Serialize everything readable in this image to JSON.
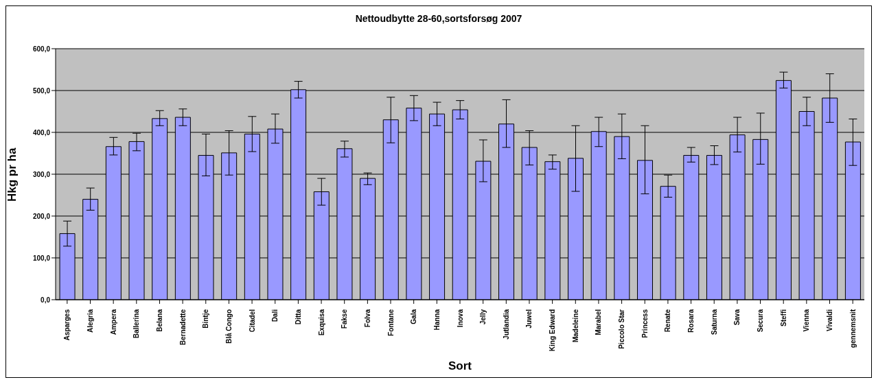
{
  "chart_data": {
    "type": "bar",
    "title": "Nettoudbytte 28-60,sortsforsøg 2007",
    "xlabel": "Sort",
    "ylabel": "Hkg pr ha",
    "categories": [
      "Asparges",
      "Alegria",
      "Ampera",
      "Ballerina",
      "Belana",
      "Bernadette",
      "Bintje",
      "Blå Congo",
      "Citadel",
      "Dali",
      "Ditta",
      "Exquisa",
      "Fakse",
      "Folva",
      "Fontane",
      "Gala",
      "Hanna",
      "Inova",
      "Jelly",
      "Jutlandia",
      "Juwel",
      "King Edward",
      "Madeleine",
      "Marabel",
      "Piccolo Star",
      "Princess",
      "Renate",
      "Rosara",
      "Saturna",
      "Sava",
      "Secura",
      "Steffi",
      "Vienna",
      "Vivaldi",
      "gennemsnit"
    ],
    "values": [
      158,
      240,
      366,
      378,
      433,
      436,
      345,
      351,
      396,
      408,
      502,
      258,
      361,
      290,
      430,
      458,
      444,
      454,
      331,
      420,
      364,
      330,
      338,
      402,
      390,
      333,
      271,
      345,
      345,
      394,
      383,
      524,
      450,
      482,
      377
    ],
    "errors": [
      [
        128,
        188
      ],
      [
        214,
        267
      ],
      [
        346,
        388
      ],
      [
        356,
        398
      ],
      [
        416,
        452
      ],
      [
        416,
        456
      ],
      [
        296,
        396
      ],
      [
        298,
        404
      ],
      [
        354,
        438
      ],
      [
        374,
        444
      ],
      [
        482,
        522
      ],
      [
        226,
        290
      ],
      [
        341,
        379
      ],
      [
        275,
        303
      ],
      [
        375,
        484
      ],
      [
        428,
        488
      ],
      [
        416,
        472
      ],
      [
        432,
        476
      ],
      [
        282,
        382
      ],
      [
        364,
        478
      ],
      [
        322,
        404
      ],
      [
        312,
        346
      ],
      [
        259,
        416
      ],
      [
        366,
        436
      ],
      [
        337,
        444
      ],
      [
        253,
        416
      ],
      [
        245,
        298
      ],
      [
        329,
        364
      ],
      [
        323,
        368
      ],
      [
        353,
        436
      ],
      [
        324,
        446
      ],
      [
        506,
        544
      ],
      [
        416,
        484
      ],
      [
        424,
        540
      ],
      [
        321,
        432
      ]
    ],
    "color": "#9999ff",
    "ylim": [
      0,
      600
    ],
    "yticks": [
      {
        "value": 0,
        "label": "0,0"
      },
      {
        "value": 100,
        "label": "100,0"
      },
      {
        "value": 200,
        "label": "200,0"
      },
      {
        "value": 300,
        "label": "300,0"
      },
      {
        "value": 400,
        "label": "400,0"
      },
      {
        "value": 500,
        "label": "500,0"
      },
      {
        "value": 600,
        "label": "600,0"
      }
    ],
    "grid": "y",
    "legend": false
  }
}
